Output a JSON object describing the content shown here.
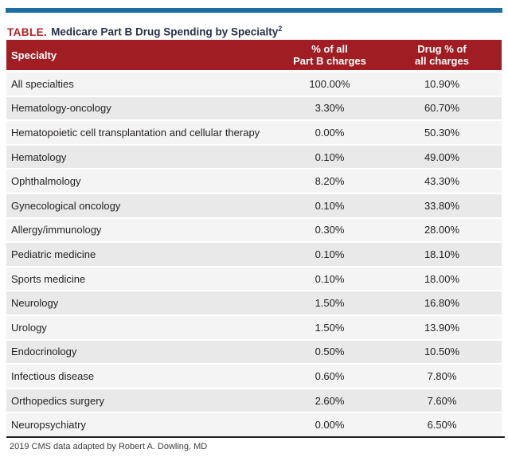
{
  "colors": {
    "accent-bar": "#1e6f9f",
    "header-bg": "#a01e23",
    "header-text": "#ffffff",
    "title-label": "#b01f24",
    "title-text": "#27304a",
    "row-odd": "#f4f4f4",
    "row-even": "#e9e9ea",
    "body-text": "#231f20",
    "rule": "#231f20",
    "footnote-text": "#3d3d3d"
  },
  "title": {
    "label": "TABLE.",
    "text": "Medicare Part B Drug Spending by Specialty",
    "superscript": "2"
  },
  "table_header": {
    "col1": "Specialty",
    "col2_line1": "% of all",
    "col2_line2": "Part B charges",
    "col3_line1": "Drug % of",
    "col3_line2": "all charges"
  },
  "footer": {
    "text": "2019 CMS data adapted by Robert A. Dowling, MD"
  },
  "chart_data": {
    "type": "table",
    "title": "TABLE. Medicare Part B Drug Spending by Specialty",
    "columns": [
      "Specialty",
      "% of all Part B charges",
      "Drug % of all charges"
    ],
    "rows": [
      [
        "All specialties",
        "100.00%",
        "10.90%"
      ],
      [
        "Hematology-oncology",
        "3.30%",
        "60.70%"
      ],
      [
        "Hematopoietic cell transplantation and cellular therapy",
        "0.00%",
        "50.30%"
      ],
      [
        "Hematology",
        "0.10%",
        "49.00%"
      ],
      [
        "Ophthalmology",
        "8.20%",
        "43.30%"
      ],
      [
        "Gynecological oncology",
        "0.10%",
        "33.80%"
      ],
      [
        "Allergy/immunology",
        "0.30%",
        "28.00%"
      ],
      [
        "Pediatric medicine",
        "0.10%",
        "18.10%"
      ],
      [
        "Sports medicine",
        "0.10%",
        "18.00%"
      ],
      [
        "Neurology",
        "1.50%",
        "16.80%"
      ],
      [
        "Urology",
        "1.50%",
        "13.90%"
      ],
      [
        "Endocrinology",
        "0.50%",
        "10.50%"
      ],
      [
        "Infectious disease",
        "0.60%",
        "7.80%"
      ],
      [
        "Orthopedics surgery",
        "2.60%",
        "7.60%"
      ],
      [
        "Neuropsychiatry",
        "0.00%",
        "6.50%"
      ]
    ],
    "footnote": "2019 CMS data adapted by Robert A. Dowling, MD"
  }
}
